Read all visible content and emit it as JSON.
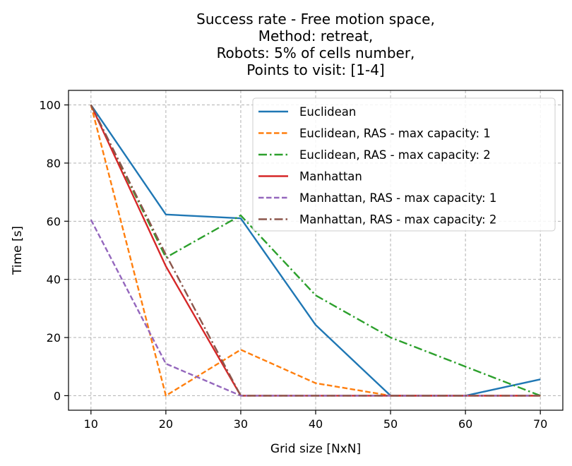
{
  "chart_data": {
    "type": "line",
    "title_lines": [
      "Success rate - Free motion space,",
      "Method: retreat,",
      "Robots: 5% of cells number,",
      "Points to visit: [1-4]"
    ],
    "xlabel": "Grid size [NxN]",
    "ylabel": "Time [s]",
    "x": [
      10,
      20,
      30,
      40,
      50,
      60,
      70
    ],
    "xlim": [
      7,
      73
    ],
    "ylim": [
      -5,
      105
    ],
    "xticks": [
      10,
      20,
      30,
      40,
      50,
      60,
      70
    ],
    "yticks": [
      0,
      20,
      40,
      60,
      80,
      100
    ],
    "grid": true,
    "legend_position": "top-right",
    "series": [
      {
        "name": "Euclidean",
        "values": [
          100,
          62.3,
          61,
          24.3,
          0,
          0,
          5.6
        ],
        "color": "#1f77b4",
        "dash": "solid"
      },
      {
        "name": "Euclidean, RAS - max capacity: 1",
        "values": [
          100,
          0,
          15.8,
          4.3,
          0,
          0,
          0
        ],
        "color": "#ff7f0e",
        "dash": "dashed"
      },
      {
        "name": "Euclidean, RAS - max capacity: 2",
        "values": [
          100,
          47.5,
          62,
          34.5,
          20,
          10,
          0
        ],
        "color": "#2ca02c",
        "dash": "dashdot"
      },
      {
        "name": "Manhattan",
        "values": [
          100,
          44.5,
          0,
          0,
          0,
          0,
          0
        ],
        "color": "#d62728",
        "dash": "solid"
      },
      {
        "name": "Manhattan, RAS - max capacity: 1",
        "values": [
          60.5,
          11,
          0,
          0,
          0,
          0,
          0
        ],
        "color": "#9467bd",
        "dash": "dashed"
      },
      {
        "name": "Manhattan, RAS - max capacity: 2",
        "values": [
          100,
          48.5,
          0,
          0,
          0,
          0,
          0
        ],
        "color": "#8c564b",
        "dash": "dashdot"
      }
    ]
  }
}
